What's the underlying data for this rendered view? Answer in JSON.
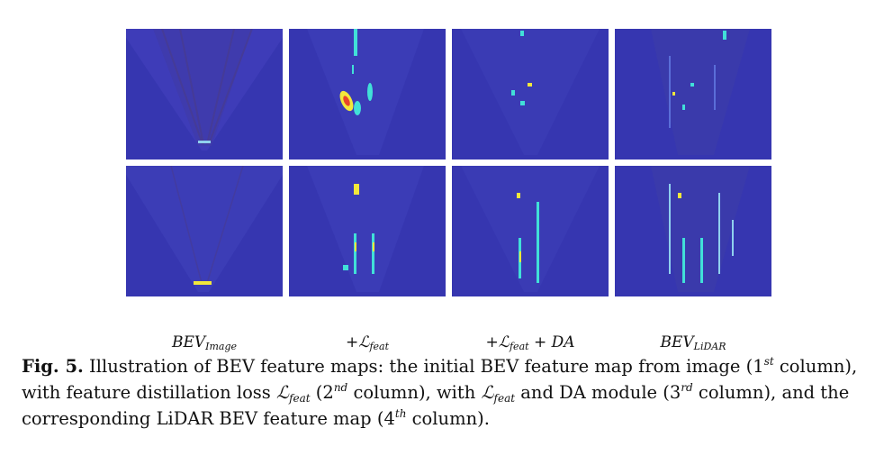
{
  "figure": {
    "columns": [
      {
        "label_main": "BEV",
        "label_sub": "Image",
        "label_suffix": ""
      },
      {
        "label_main": "+ℒ",
        "label_sub": "feat",
        "label_suffix": ""
      },
      {
        "label_main": "+ℒ",
        "label_sub": "feat",
        "label_suffix": " + DA"
      },
      {
        "label_main": "BEV",
        "label_sub": "LiDAR",
        "label_suffix": ""
      }
    ],
    "background_color": "#3636b0",
    "highlight_colors": [
      "#41e0d8",
      "#f2e73b",
      "#e8432a",
      "#8fd0ee"
    ]
  },
  "caption": {
    "label": "Fig. 5.",
    "t1": " Illustration of BEV feature maps: the initial BEV feature map from image (1",
    "s1": "st",
    "t2": " column), with feature distillation loss ",
    "math1": "ℒ",
    "math1_sub": "feat",
    "t3": " (2",
    "s2": "nd",
    "t4": " column), with ",
    "math2": "ℒ",
    "math2_sub": "feat",
    "t5": " and DA module (3",
    "s3": "rd",
    "t6": " column), and the corresponding LiDAR BEV feature map (4",
    "s4": "th",
    "t7": " column)."
  }
}
